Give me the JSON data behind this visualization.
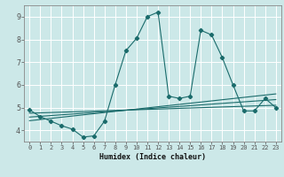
{
  "xlabel": "Humidex (Indice chaleur)",
  "bg_color": "#cce8e8",
  "line_color": "#1a6b6b",
  "grid_color": "#ffffff",
  "grid_minor_color": "#ddeaea",
  "xlim": [
    -0.5,
    23.5
  ],
  "ylim": [
    3.5,
    9.5
  ],
  "xticks": [
    0,
    1,
    2,
    3,
    4,
    5,
    6,
    7,
    8,
    9,
    10,
    11,
    12,
    13,
    14,
    15,
    16,
    17,
    18,
    19,
    20,
    21,
    22,
    23
  ],
  "yticks": [
    4,
    5,
    6,
    7,
    8,
    9
  ],
  "series_main": {
    "x": [
      0,
      1,
      2,
      3,
      4,
      5,
      6,
      7,
      8,
      9,
      10,
      11,
      12,
      13,
      14,
      15,
      16,
      17,
      18,
      19,
      20,
      21,
      22,
      23
    ],
    "y": [
      4.9,
      4.6,
      4.4,
      4.2,
      4.05,
      3.7,
      3.75,
      4.4,
      6.0,
      7.5,
      8.05,
      9.0,
      9.2,
      5.5,
      5.4,
      5.5,
      8.4,
      8.2,
      7.2,
      6.0,
      4.85,
      4.85,
      5.4,
      5.0
    ]
  },
  "trend_lines": [
    {
      "x": [
        0,
        23
      ],
      "y": [
        4.75,
        5.1
      ]
    },
    {
      "x": [
        0,
        23
      ],
      "y": [
        4.58,
        5.35
      ]
    },
    {
      "x": [
        0,
        23
      ],
      "y": [
        4.42,
        5.6
      ]
    }
  ]
}
